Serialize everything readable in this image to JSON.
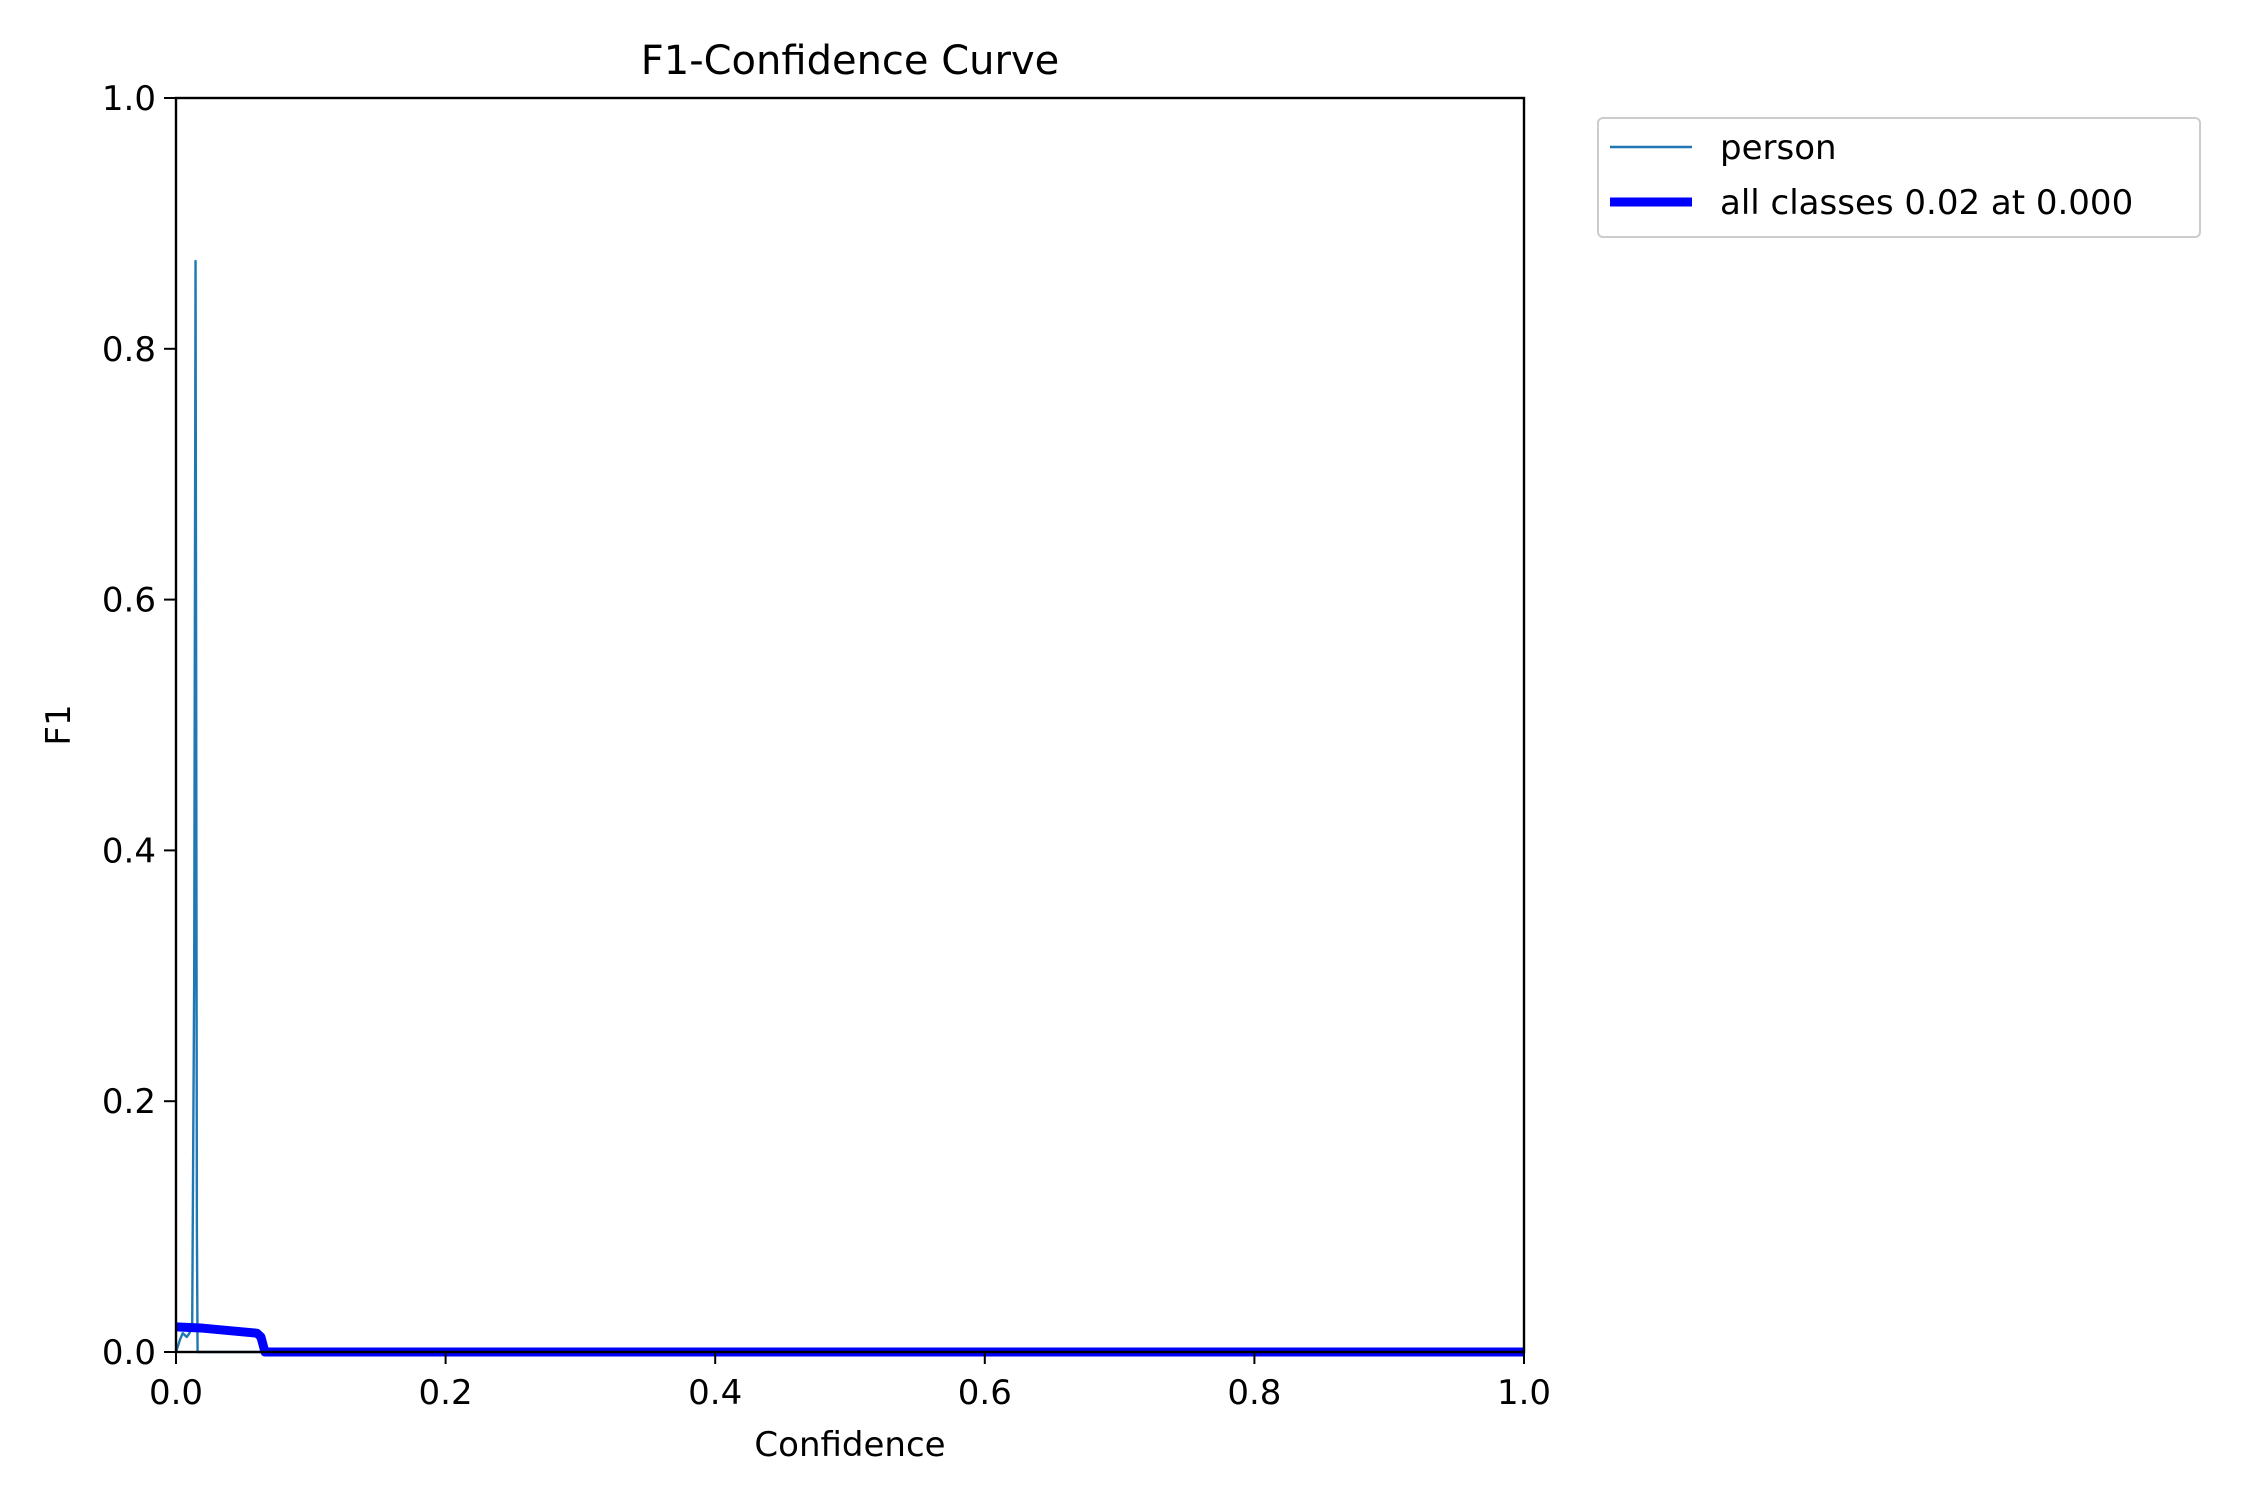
{
  "chart_data": {
    "type": "line",
    "title": "F1-Confidence Curve",
    "xlabel": "Confidence",
    "ylabel": "F1",
    "xlim": [
      0.0,
      1.0
    ],
    "ylim": [
      0.0,
      1.0
    ],
    "xticks": [
      "0.0",
      "0.2",
      "0.4",
      "0.6",
      "0.8",
      "1.0"
    ],
    "yticks": [
      "0.0",
      "0.2",
      "0.4",
      "0.6",
      "0.8",
      "1.0"
    ],
    "grid": false,
    "legend_position": "outside-top-right",
    "series": [
      {
        "name": "person",
        "color": "#1f77b4",
        "x": [
          0.0,
          0.003,
          0.005,
          0.008,
          0.01,
          0.012,
          0.0135,
          0.0145,
          0.015,
          0.0155,
          0.016,
          0.017,
          0.2,
          0.4,
          0.6,
          0.8,
          1.0
        ],
        "y": [
          0.0,
          0.01,
          0.015,
          0.012,
          0.015,
          0.02,
          0.3,
          0.87,
          0.5,
          0.1,
          0.0,
          0.0,
          0.0,
          0.0,
          0.0,
          0.0,
          0.0
        ]
      },
      {
        "name": "all classes 0.02 at 0.000",
        "color": "#0000ff",
        "x": [
          0.0,
          0.02,
          0.04,
          0.06,
          0.063,
          0.066,
          0.2,
          0.4,
          0.6,
          0.8,
          1.0
        ],
        "y": [
          0.02,
          0.019,
          0.017,
          0.015,
          0.012,
          0.0,
          0.0,
          0.0,
          0.0,
          0.0,
          0.0
        ]
      }
    ]
  }
}
